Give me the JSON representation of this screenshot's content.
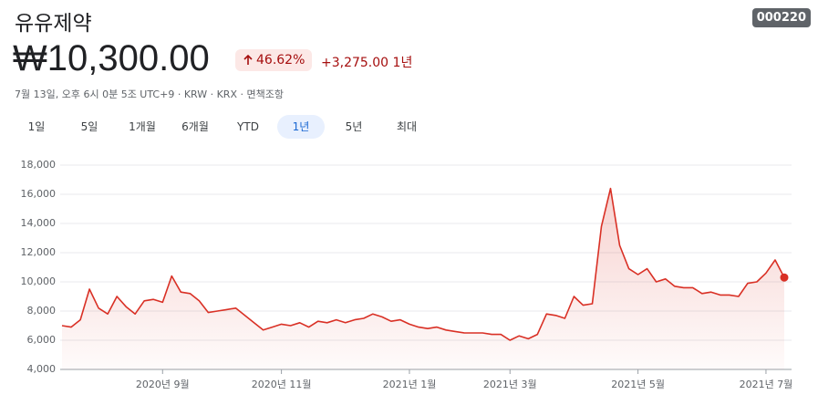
{
  "header": {
    "title": "유유제약",
    "ticker": "000220",
    "price": "₩10,300.00",
    "change_percent": "46.62%",
    "change": "+3,275.00",
    "period": "1년",
    "info": "7월 13일, 오후 6시 0분 5조 UTC+9 · KRW · KRX · 면책조항"
  },
  "tabs": {
    "items": [
      "1일",
      "5일",
      "1개월",
      "6개월",
      "YTD",
      "1년",
      "5년",
      "최대"
    ],
    "selected": "1년"
  },
  "chart_data": {
    "type": "line",
    "color": "#d93025",
    "categories": [
      null,
      null,
      null,
      null,
      null,
      null,
      null,
      null,
      null,
      null,
      null,
      "2020년 9월",
      null,
      null,
      null,
      null,
      null,
      null,
      null,
      null,
      null,
      null,
      null,
      null,
      "2020년 11월",
      null,
      null,
      null,
      null,
      null,
      null,
      null,
      null,
      null,
      null,
      null,
      null,
      null,
      "2021년 1월",
      null,
      null,
      null,
      null,
      null,
      null,
      null,
      null,
      null,
      null,
      "2021년 3월",
      null,
      null,
      null,
      null,
      null,
      null,
      null,
      null,
      null,
      null,
      null,
      null,
      null,
      "2021년 5월",
      null,
      null,
      null,
      null,
      null,
      null,
      null,
      null,
      null,
      null,
      null,
      null,
      null,
      "2021년 7월",
      null,
      null
    ],
    "values": [
      7000,
      6900,
      7400,
      9500,
      8200,
      7800,
      9000,
      8300,
      7800,
      8700,
      8800,
      8600,
      10400,
      9300,
      9200,
      8700,
      7900,
      8000,
      8100,
      8200,
      7700,
      7200,
      6700,
      6900,
      7100,
      7000,
      7200,
      6900,
      7300,
      7200,
      7400,
      7200,
      7400,
      7500,
      7800,
      7600,
      7300,
      7400,
      7100,
      6900,
      6800,
      6900,
      6700,
      6600,
      6500,
      6500,
      6500,
      6400,
      6400,
      6000,
      6300,
      6100,
      6400,
      7800,
      7700,
      7500,
      9000,
      8400,
      8500,
      13800,
      16400,
      12500,
      10900,
      10500,
      10900,
      10000,
      10200,
      9700,
      9600,
      9600,
      9200,
      9300,
      9100,
      9100,
      9000,
      9900,
      10000,
      10600,
      11500,
      10300
    ],
    "ylim": [
      4000,
      18000
    ],
    "yticks": [
      {
        "value": 4000,
        "label": "4,000"
      },
      {
        "value": 6000,
        "label": "6,000"
      },
      {
        "value": 8000,
        "label": "8,000"
      },
      {
        "value": 10000,
        "label": "10,000"
      },
      {
        "value": 12000,
        "label": "12,000"
      },
      {
        "value": 14000,
        "label": "14,000"
      },
      {
        "value": 16000,
        "label": "16,000"
      },
      {
        "value": 18000,
        "label": "18,000"
      }
    ],
    "grid": true
  }
}
